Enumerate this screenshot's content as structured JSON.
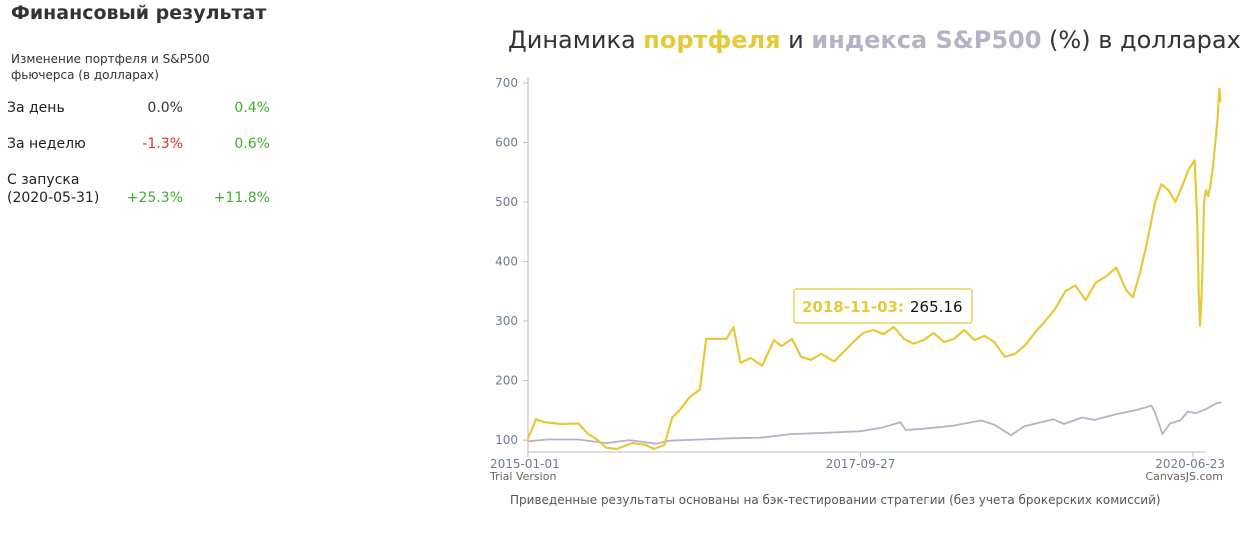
{
  "stats": {
    "title": "Финансовый результат",
    "header": "Изменение портфеля и S&P500 фьючерса (в долларах)",
    "rows": [
      {
        "label": "За день",
        "portfolio": "0.0%",
        "index": "0.4%",
        "portfolio_color": "#333333",
        "index_color": "#44aa33"
      },
      {
        "label": "За неделю",
        "portfolio": "-1.3%",
        "index": "0.6%",
        "portfolio_color": "#dd3333",
        "index_color": "#44aa33"
      },
      {
        "label": "С запуска (2020-05-31)",
        "portfolio": "+25.3%",
        "index": "+11.8%",
        "portfolio_color": "#44aa33",
        "index_color": "#44aa33"
      }
    ]
  },
  "chart": {
    "title_parts": {
      "prefix": "Динамика ",
      "portfolio": "портфеля",
      "mid": " и ",
      "index": "индекса S&P500",
      "suffix": " (%) в долларах"
    },
    "footnote": "Приведенные результаты основаны на бэк-тестировании стратегии (без учета брокерских комиссий)",
    "watermark_left": "Trial Version",
    "watermark_right": "CanvasJS.com",
    "tooltip": {
      "date": "2018-11-03:",
      "value": "265.16"
    }
  },
  "colors": {
    "portfolio": "#e5c93a",
    "index": "#b6b2c6",
    "positive": "#44aa33",
    "negative": "#dd3333"
  },
  "chart_data": {
    "type": "line",
    "x_labels": [
      "2015-01-01",
      "2017-09-27",
      "2020-06-23"
    ],
    "y_ticks": [
      100,
      200,
      300,
      400,
      500,
      600,
      700
    ],
    "ylim": [
      80,
      700
    ],
    "x_range": [
      "2015-01-01",
      "2020-07-20"
    ],
    "grid": false,
    "series": [
      {
        "key": "portfolio",
        "color": "#e5c93a",
        "points": [
          [
            "2015-01-01",
            103
          ],
          [
            "2015-01-25",
            135
          ],
          [
            "2015-02-20",
            130
          ],
          [
            "2015-04-10",
            127
          ],
          [
            "2015-06-01",
            128
          ],
          [
            "2015-07-01",
            110
          ],
          [
            "2015-07-25",
            102
          ],
          [
            "2015-08-25",
            87
          ],
          [
            "2015-09-25",
            85
          ],
          [
            "2015-11-10",
            95
          ],
          [
            "2015-12-20",
            92
          ],
          [
            "2016-01-15",
            85
          ],
          [
            "2016-02-15",
            92
          ],
          [
            "2016-03-10",
            138
          ],
          [
            "2016-04-01",
            150
          ],
          [
            "2016-05-01",
            172
          ],
          [
            "2016-06-01",
            185
          ],
          [
            "2016-06-20",
            270
          ],
          [
            "2016-07-20",
            270
          ],
          [
            "2016-08-20",
            270
          ],
          [
            "2016-09-10",
            290
          ],
          [
            "2016-10-01",
            230
          ],
          [
            "2016-11-01",
            238
          ],
          [
            "2016-12-05",
            225
          ],
          [
            "2017-01-10",
            268
          ],
          [
            "2017-02-01",
            258
          ],
          [
            "2017-03-05",
            270
          ],
          [
            "2017-04-01",
            240
          ],
          [
            "2017-05-01",
            235
          ],
          [
            "2017-06-01",
            245
          ],
          [
            "2017-07-10",
            232
          ],
          [
            "2017-08-10",
            250
          ],
          [
            "2017-09-15",
            270
          ],
          [
            "2017-10-05",
            280
          ],
          [
            "2017-11-05",
            285
          ],
          [
            "2017-12-05",
            278
          ],
          [
            "2018-01-05",
            290
          ],
          [
            "2018-02-05",
            270
          ],
          [
            "2018-03-05",
            262
          ],
          [
            "2018-04-05",
            268
          ],
          [
            "2018-05-05",
            280
          ],
          [
            "2018-06-05",
            265
          ],
          [
            "2018-07-05",
            270
          ],
          [
            "2018-08-05",
            285
          ],
          [
            "2018-09-05",
            268
          ],
          [
            "2018-10-05",
            275
          ],
          [
            "2018-11-03",
            265
          ],
          [
            "2018-12-05",
            240
          ],
          [
            "2019-01-05",
            245
          ],
          [
            "2019-02-05",
            260
          ],
          [
            "2019-03-05",
            280
          ],
          [
            "2019-04-05",
            300
          ],
          [
            "2019-05-05",
            320
          ],
          [
            "2019-06-05",
            350
          ],
          [
            "2019-07-05",
            360
          ],
          [
            "2019-08-05",
            335
          ],
          [
            "2019-09-05",
            365
          ],
          [
            "2019-10-05",
            375
          ],
          [
            "2019-11-05",
            390
          ],
          [
            "2019-12-05",
            352
          ],
          [
            "2019-12-25",
            340
          ],
          [
            "2020-01-15",
            380
          ],
          [
            "2020-02-05",
            430
          ],
          [
            "2020-03-01",
            500
          ],
          [
            "2020-03-20",
            530
          ],
          [
            "2020-04-10",
            520
          ],
          [
            "2020-05-01",
            500
          ],
          [
            "2020-05-20",
            525
          ],
          [
            "2020-06-10",
            555
          ],
          [
            "2020-06-28",
            570
          ],
          [
            "2020-07-05",
            480
          ],
          [
            "2020-07-10",
            350
          ],
          [
            "2020-07-14",
            292
          ],
          [
            "2020-07-18",
            330
          ],
          [
            "2020-07-22",
            400
          ],
          [
            "2020-07-26",
            500
          ],
          [
            "2020-08-01",
            520
          ],
          [
            "2020-08-08",
            510
          ],
          [
            "2020-08-15",
            530
          ],
          [
            "2020-08-22",
            560
          ],
          [
            "2020-08-29",
            600
          ],
          [
            "2020-09-05",
            640
          ],
          [
            "2020-09-10",
            690
          ],
          [
            "2020-09-14",
            670
          ]
        ]
      },
      {
        "key": "index",
        "color": "#b6b2c6",
        "points": [
          [
            "2015-01-01",
            98
          ],
          [
            "2015-03-01",
            101
          ],
          [
            "2015-06-01",
            101
          ],
          [
            "2015-08-25",
            95
          ],
          [
            "2015-11-01",
            100
          ],
          [
            "2016-01-20",
            94
          ],
          [
            "2016-03-01",
            99
          ],
          [
            "2016-06-01",
            101
          ],
          [
            "2016-09-01",
            103
          ],
          [
            "2016-12-01",
            104
          ],
          [
            "2017-03-01",
            110
          ],
          [
            "2017-06-01",
            112
          ],
          [
            "2017-09-27",
            115
          ],
          [
            "2017-12-01",
            121
          ],
          [
            "2018-01-25",
            130
          ],
          [
            "2018-02-10",
            117
          ],
          [
            "2018-04-01",
            119
          ],
          [
            "2018-07-01",
            124
          ],
          [
            "2018-09-25",
            133
          ],
          [
            "2018-11-03",
            126
          ],
          [
            "2018-12-24",
            108
          ],
          [
            "2019-02-01",
            123
          ],
          [
            "2019-04-30",
            135
          ],
          [
            "2019-06-01",
            127
          ],
          [
            "2019-07-25",
            138
          ],
          [
            "2019-09-01",
            134
          ],
          [
            "2019-11-01",
            143
          ],
          [
            "2020-01-01",
            150
          ],
          [
            "2020-02-19",
            158
          ],
          [
            "2020-03-01",
            146
          ],
          [
            "2020-03-23",
            110
          ],
          [
            "2020-04-15",
            128
          ],
          [
            "2020-05-15",
            133
          ],
          [
            "2020-06-08",
            148
          ],
          [
            "2020-07-01",
            145
          ],
          [
            "2020-08-01",
            152
          ],
          [
            "2020-09-02",
            162
          ],
          [
            "2020-09-14",
            163
          ]
        ]
      }
    ]
  }
}
